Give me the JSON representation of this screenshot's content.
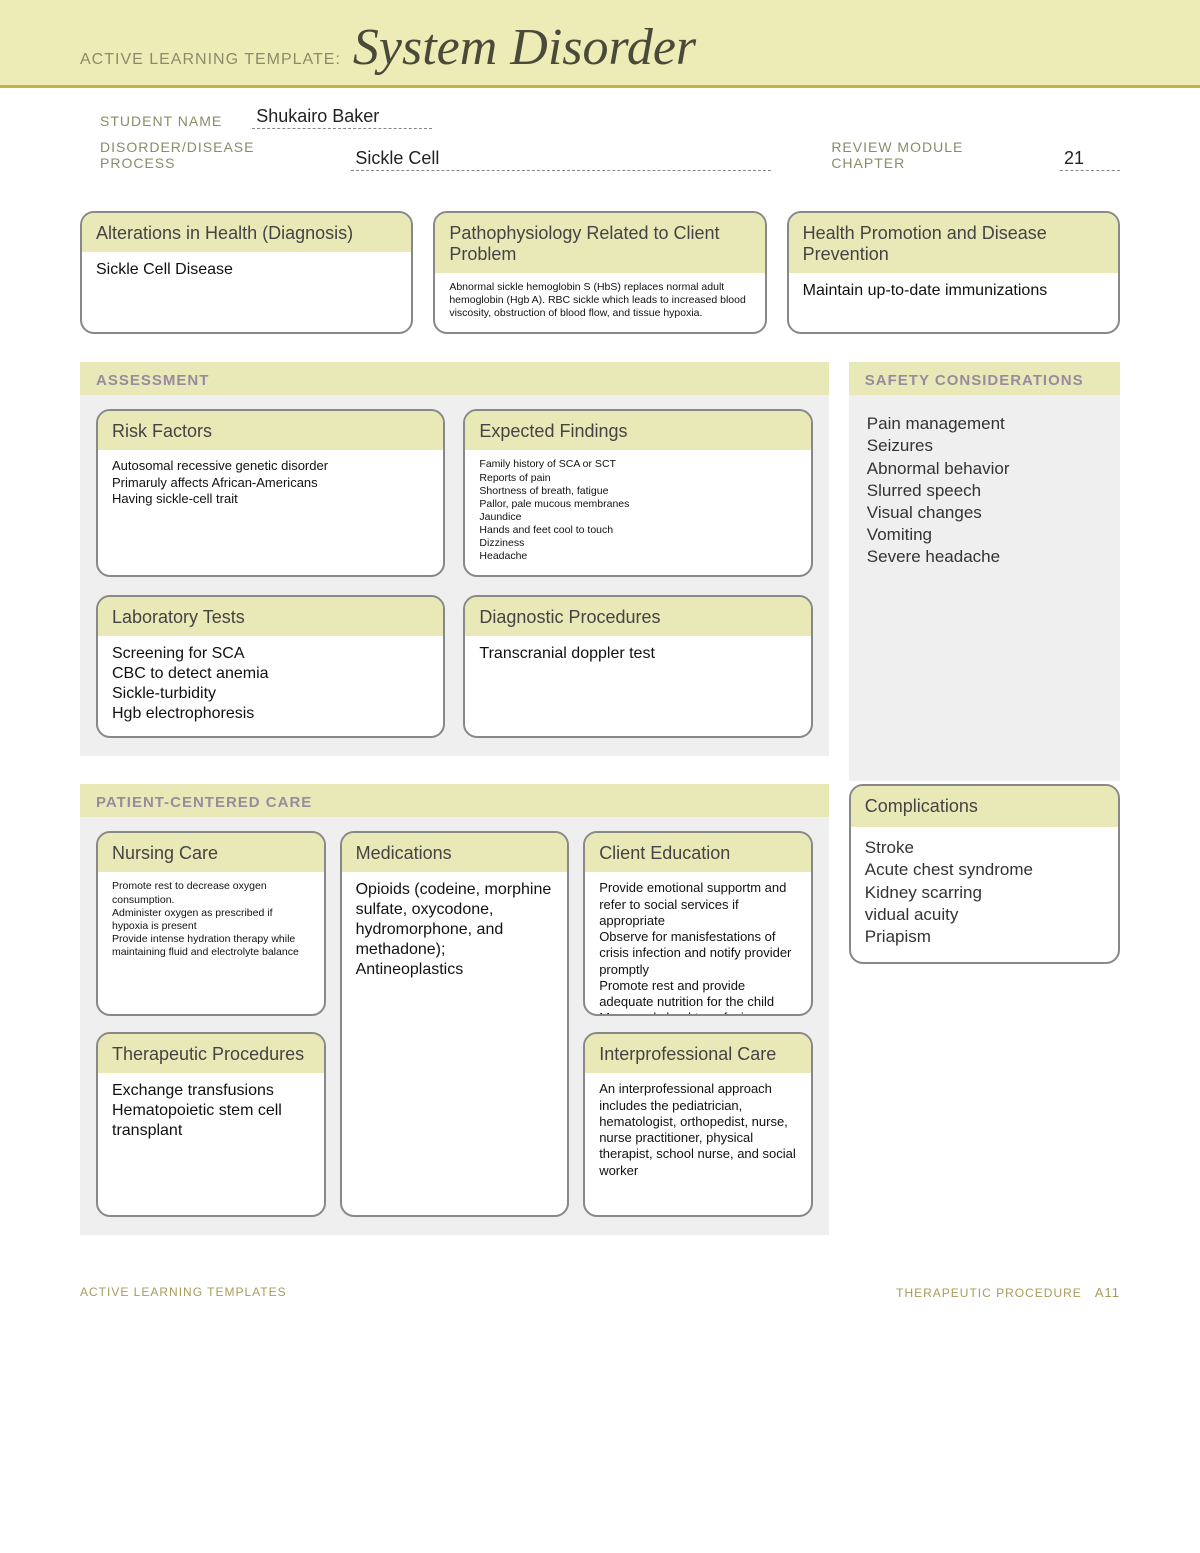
{
  "colors": {
    "banner_bg": "#edecb6",
    "gold_rule": "#c0b646",
    "label_text": "#8b8b6a",
    "section_title": "#9a8aa0",
    "card_head_bg": "#e9e9b8",
    "card_border": "#888888",
    "section_bg": "#efefef",
    "page_bg": "#ffffff"
  },
  "banner": {
    "template_label": "ACTIVE LEARNING TEMPLATE:",
    "title": "System Disorder"
  },
  "meta": {
    "student_label": "STUDENT NAME",
    "student_value": "Shukairo Baker",
    "disease_label": "DISORDER/DISEASE PROCESS",
    "disease_value": "Sickle Cell",
    "chapter_label": "REVIEW MODULE CHAPTER",
    "chapter_value": "21"
  },
  "top_cards": {
    "diagnosis": {
      "head": "Alterations in Health (Diagnosis)",
      "body": "Sickle Cell Disease"
    },
    "patho": {
      "head": "Pathophysiology Related to Client Problem",
      "body": "Abnormal sickle hemoglobin S (HbS) replaces normal adult hemoglobin (Hgb A). RBC sickle which leads to increased blood viscosity, obstruction of blood flow, and tissue hypoxia."
    },
    "promo": {
      "head": "Health Promotion and Disease Prevention",
      "body": "Maintain up-to-date immunizations"
    }
  },
  "assessment": {
    "title": "ASSESSMENT",
    "risk": {
      "head": "Risk Factors",
      "body": "Autosomal recessive genetic disorder\nPrimaruly affects African-Americans\nHaving sickle-cell trait"
    },
    "expected": {
      "head": "Expected Findings",
      "body": "Family history of SCA or SCT\nReports of pain\nShortness of breath, fatigue\nPallor, pale mucous membranes\nJaundice\nHands and feet cool to touch\nDizziness\nHeadache"
    },
    "labs": {
      "head": "Laboratory Tests",
      "body": "Screening for SCA\nCBC to detect anemia\nSickle-turbidity\nHgb electrophoresis"
    },
    "diag": {
      "head": "Diagnostic Procedures",
      "body": "Transcranial doppler test"
    }
  },
  "safety": {
    "title": "SAFETY CONSIDERATIONS",
    "body": "Pain management\nSeizures\nAbnormal behavior\nSlurred speech\nVisual changes\nVomiting\nSevere headache"
  },
  "pcc": {
    "title": "PATIENT-CENTERED CARE",
    "nursing": {
      "head": "Nursing Care",
      "body": "Promote rest to decrease oxygen consumption.\nAdminister oxygen as prescribed if hypoxia is present\nProvide intense hydration therapy while maintaining fluid and electrolyte balance"
    },
    "meds": {
      "head": "Medications",
      "body": "Opioids (codeine, morphine sulfate, oxycodone, hydromorphone, and methadone); Antineoplastics"
    },
    "edu": {
      "head": "Client Education",
      "body": "Provide emotional supportm and refer to social services if appropriate\nObserve for manisfestations of crisis infection and notify provider promptly\nPromote rest and provide adequate nutrition for the child\nMay need clood transfusion"
    },
    "thera": {
      "head": "Therapeutic Procedures",
      "body": "Exchange transfusions\nHematopoietic stem cell transplant"
    },
    "inter": {
      "head": "Interprofessional Care",
      "body": "An interprofessional approach includes the pediatrician, hematologist, orthopedist, nurse, nurse practitioner, physical therapist, school nurse, and social worker"
    }
  },
  "complications": {
    "head": "Complications",
    "body": "Stroke\nAcute chest syndrome\nKidney scarring\nvidual acuity\nPriapism"
  },
  "footer": {
    "left": "ACTIVE LEARNING TEMPLATES",
    "right_label": "THERAPEUTIC PROCEDURE",
    "page": "A11"
  }
}
